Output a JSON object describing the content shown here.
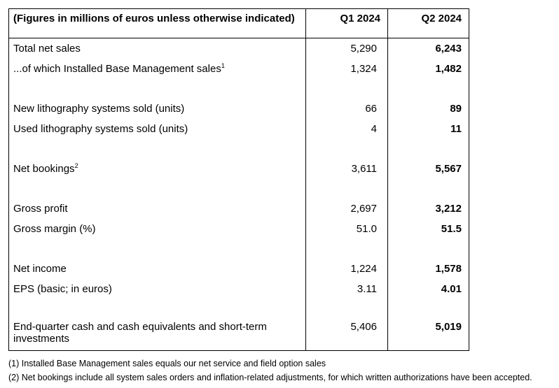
{
  "table": {
    "header": {
      "label": "(Figures in millions of euros unless otherwise indicated)",
      "col_q1": "Q1 2024",
      "col_q2": "Q2 2024"
    },
    "rows": [
      {
        "label": "Total net sales",
        "sup": "",
        "q1": "5,290",
        "q2": "6,243"
      },
      {
        "label": "...of which Installed Base Management sales",
        "sup": "1",
        "q1": "1,324",
        "q2": "1,482"
      },
      {
        "label": "New lithography systems sold (units)",
        "sup": "",
        "q1": "66",
        "q2": "89"
      },
      {
        "label": "Used lithography systems sold (units)",
        "sup": "",
        "q1": "4",
        "q2": "11"
      },
      {
        "label": "Net bookings",
        "sup": "2",
        "q1": "3,611",
        "q2": "5,567"
      },
      {
        "label": "Gross profit",
        "sup": "",
        "q1": "2,697",
        "q2": "3,212"
      },
      {
        "label": "Gross margin (%)",
        "sup": "",
        "q1": "51.0",
        "q2": "51.5"
      },
      {
        "label": "Net income",
        "sup": "",
        "q1": "1,224",
        "q2": "1,578"
      },
      {
        "label": "EPS (basic; in euros)",
        "sup": "",
        "q1": "3.11",
        "q2": "4.01"
      },
      {
        "label": "End-quarter cash and cash equivalents and short-term investments",
        "sup": "",
        "q1": "5,406",
        "q2": "5,019"
      }
    ]
  },
  "footnotes": [
    "(1) Installed Base Management sales equals our net service and field option sales",
    "(2) Net bookings include all system sales orders and inflation-related adjustments, for which written authorizations have been accepted."
  ]
}
